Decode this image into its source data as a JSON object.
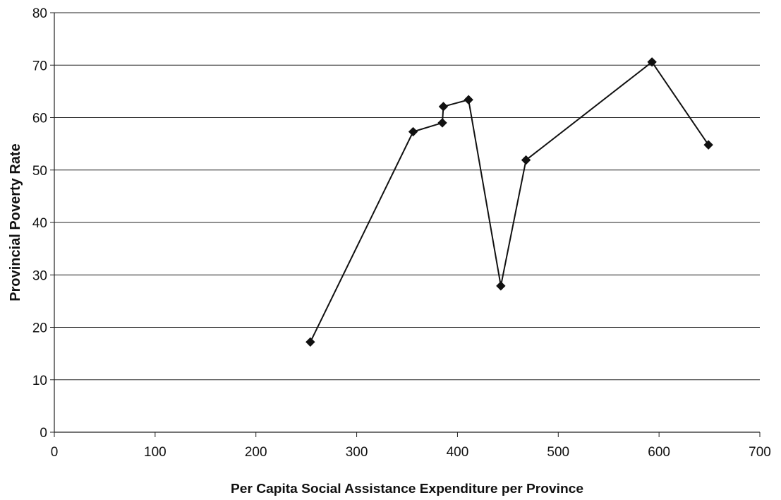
{
  "chart_data": {
    "type": "line",
    "xlabel": "Per Capita Social Assistance Expenditure per Province",
    "ylabel": "Provincial Poverty Rate",
    "xlim": [
      0,
      700
    ],
    "ylim": [
      0,
      80
    ],
    "xticks": [
      0,
      100,
      200,
      300,
      400,
      500,
      600,
      700
    ],
    "yticks": [
      0,
      10,
      20,
      30,
      40,
      50,
      60,
      70,
      80
    ],
    "grid": "horizontal",
    "marker": "diamond",
    "series": [
      {
        "x": [
          254,
          356,
          385,
          386,
          411,
          443,
          468,
          593,
          649
        ],
        "y": [
          17.2,
          57.3,
          59.0,
          62.1,
          63.4,
          27.9,
          51.9,
          70.6,
          54.8
        ]
      }
    ]
  }
}
